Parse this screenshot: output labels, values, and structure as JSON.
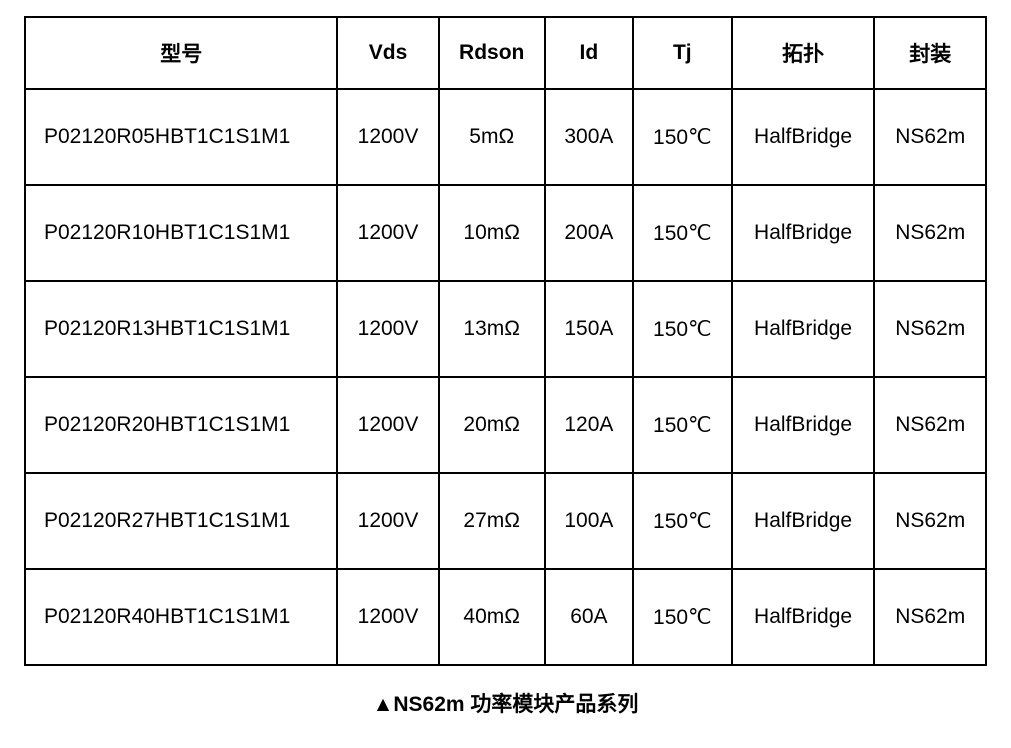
{
  "table": {
    "columns": [
      {
        "key": "model",
        "label": "型号"
      },
      {
        "key": "vds",
        "label": "Vds"
      },
      {
        "key": "rdson",
        "label": "Rdson"
      },
      {
        "key": "id",
        "label": "Id"
      },
      {
        "key": "tj",
        "label": "Tj"
      },
      {
        "key": "topo",
        "label": "拓扑"
      },
      {
        "key": "package",
        "label": "封装"
      }
    ],
    "rows": [
      {
        "model": "P02120R05HBT1C1S1M1",
        "vds": "1200V",
        "rdson": "5mΩ",
        "id": "300A",
        "tj": "150℃",
        "topo": "HalfBridge",
        "package": "NS62m"
      },
      {
        "model": "P02120R10HBT1C1S1M1",
        "vds": "1200V",
        "rdson": "10mΩ",
        "id": "200A",
        "tj": "150℃",
        "topo": "HalfBridge",
        "package": "NS62m"
      },
      {
        "model": "P02120R13HBT1C1S1M1",
        "vds": "1200V",
        "rdson": "13mΩ",
        "id": "150A",
        "tj": "150℃",
        "topo": "HalfBridge",
        "package": "NS62m"
      },
      {
        "model": "P02120R20HBT1C1S1M1",
        "vds": "1200V",
        "rdson": "20mΩ",
        "id": "120A",
        "tj": "150℃",
        "topo": "HalfBridge",
        "package": "NS62m"
      },
      {
        "model": "P02120R27HBT1C1S1M1",
        "vds": "1200V",
        "rdson": "27mΩ",
        "id": "100A",
        "tj": "150℃",
        "topo": "HalfBridge",
        "package": "NS62m"
      },
      {
        "model": "P02120R40HBT1C1S1M1",
        "vds": "1200V",
        "rdson": "40mΩ",
        "id": "60A",
        "tj": "150℃",
        "topo": "HalfBridge",
        "package": "NS62m"
      }
    ],
    "border_color": "#000000",
    "background_color": "#ffffff",
    "header_fontsize": 21,
    "cell_fontsize": 21,
    "header_row_height": 72,
    "data_row_height": 96
  },
  "caption": "▲NS62m 功率模块产品系列"
}
